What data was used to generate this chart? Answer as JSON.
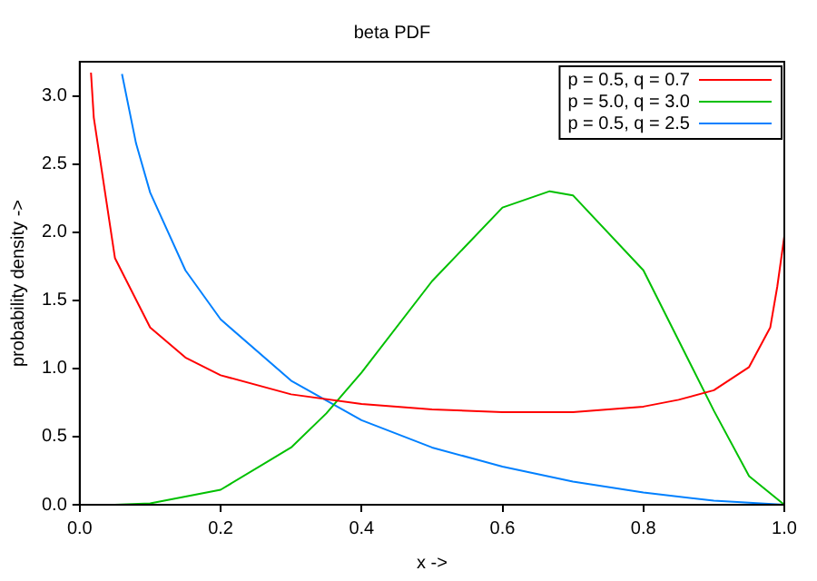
{
  "chart_data": {
    "type": "line",
    "title": "beta PDF",
    "xlabel": "x ->",
    "ylabel": "probability density ->",
    "xlim": [
      0,
      1
    ],
    "ylim": [
      0,
      3.25
    ],
    "xticks": [
      {
        "value": 0,
        "label": "0.0"
      },
      0.2,
      0.4,
      0.6,
      0.8,
      {
        "value": 1,
        "label": "1.0"
      }
    ],
    "yticks": [
      {
        "value": 0,
        "label": "0.0"
      },
      0.5,
      {
        "value": 1,
        "label": "1.0"
      },
      1.5,
      {
        "value": 2,
        "label": "2.0"
      },
      2.5,
      {
        "value": 3,
        "label": "3.0"
      }
    ],
    "grid": false,
    "legend": "top right",
    "marker": "none",
    "line_style": "solid",
    "series": [
      {
        "name": "p = 0.5, q = 0.7",
        "color": "#ff0000",
        "x": [
          0.016,
          0.02,
          0.05,
          0.1,
          0.15,
          0.2,
          0.3,
          0.4,
          0.5,
          0.6,
          0.7,
          0.8,
          0.85,
          0.9,
          0.95,
          0.98,
          0.99,
          1.0
        ],
        "values": [
          3.17,
          2.84,
          1.81,
          1.3,
          1.08,
          0.95,
          0.81,
          0.74,
          0.7,
          0.68,
          0.68,
          0.72,
          0.77,
          0.84,
          1.01,
          1.3,
          1.6,
          1.97
        ]
      },
      {
        "name": "p = 5.0, q = 3.0",
        "color": "#00c000",
        "x": [
          0.05,
          0.1,
          0.2,
          0.3,
          0.35,
          0.4,
          0.5,
          0.6,
          0.667,
          0.7,
          0.8,
          0.9,
          0.95,
          1.0
        ],
        "values": [
          0,
          0.01,
          0.11,
          0.42,
          0.67,
          0.97,
          1.64,
          2.18,
          2.3,
          2.27,
          1.72,
          0.69,
          0.21,
          0
        ]
      },
      {
        "name": "p = 0.5, q = 2.5",
        "color": "#0080ff",
        "x": [
          0.06,
          0.08,
          0.1,
          0.15,
          0.2,
          0.3,
          0.4,
          0.5,
          0.6,
          0.7,
          0.8,
          0.9,
          1.0
        ],
        "values": [
          3.16,
          2.65,
          2.29,
          1.72,
          1.36,
          0.91,
          0.62,
          0.42,
          0.28,
          0.17,
          0.09,
          0.03,
          0
        ]
      }
    ]
  }
}
